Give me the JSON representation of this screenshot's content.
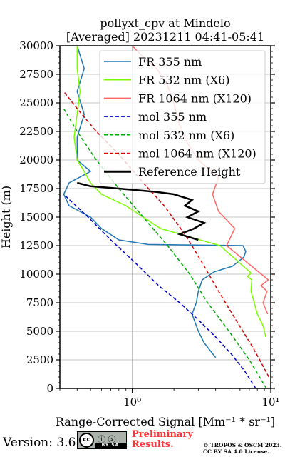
{
  "chart_data": {
    "type": "line",
    "title": "pollyxt_cpv at Mindelo",
    "subtitle": "[Averaged] 20231211 04:41-05:41",
    "xlabel": "Range-Corrected Signal [Mm^{-1} * sr^{-1}]",
    "ylabel": "Height (m)",
    "xscale": "log",
    "xlim": [
      0.3,
      10
    ],
    "ylim": [
      0,
      30000
    ],
    "xticks": [
      1,
      10
    ],
    "xtick_labels": [
      "10⁰",
      "10¹"
    ],
    "yticks": [
      0,
      2500,
      5000,
      7500,
      10000,
      12500,
      15000,
      17500,
      20000,
      22500,
      25000,
      27500,
      30000
    ],
    "ytick_labels": [
      "0",
      "2500",
      "5000",
      "7500",
      "10000",
      "12500",
      "15000",
      "17500",
      "20000",
      "22500",
      "25000",
      "27500",
      "30000"
    ],
    "grid": true,
    "legend_position": "top-right",
    "series": [
      {
        "name": "FR 355 nm",
        "color": "#1f77b4",
        "style": "solid",
        "x": [
          4.0,
          3.3,
          3.0,
          2.7,
          2.9,
          3.0,
          3.2,
          3.9,
          5.3,
          6.4,
          6.6,
          6.3,
          1.3,
          0.8,
          0.6,
          0.5,
          0.35,
          0.32,
          0.35,
          0.5,
          0.4,
          0.4,
          0.45,
          0.4,
          0.45,
          0.4
        ],
        "y": [
          2700,
          4000,
          5000,
          6500,
          7500,
          8500,
          9500,
          10200,
          10700,
          11500,
          12000,
          12500,
          12600,
          13000,
          14000,
          15000,
          16000,
          17000,
          18000,
          19000,
          20000,
          22000,
          24000,
          26000,
          28000,
          30000
        ]
      },
      {
        "name": "FR 532 nm (X6)",
        "color": "#7cfc00",
        "style": "solid",
        "x": [
          9.2,
          8.8,
          8.0,
          7.6,
          7.2,
          7.3,
          6.8,
          7.0,
          7.2,
          4.3,
          1.6,
          1.2,
          0.9,
          0.6,
          0.5,
          0.45,
          0.4,
          0.38,
          0.4,
          0.42,
          0.4,
          0.4
        ],
        "y": [
          4500,
          5500,
          6500,
          7500,
          8500,
          9500,
          9800,
          9950,
          10100,
          12500,
          14000,
          15000,
          16000,
          17000,
          18000,
          19000,
          20000,
          22000,
          24000,
          26000,
          28000,
          30000
        ]
      },
      {
        "name": "FR 1064 nm (X120)",
        "color": "#ff6666",
        "style": "solid",
        "x": [
          9.5,
          8.8,
          9.4,
          8.5,
          9.6,
          4.8,
          5.5,
          4.2,
          3.8,
          4.2,
          3.0,
          2.5,
          2.2,
          2.0,
          1.8,
          1.5,
          1.2,
          1.0
        ],
        "y": [
          6500,
          7500,
          8500,
          9000,
          9500,
          12500,
          14000,
          15500,
          17000,
          18500,
          20000,
          21500,
          23000,
          25000,
          26500,
          28000,
          29000,
          30000
        ]
      },
      {
        "name": "mol 355 nm",
        "color": "#0000cc",
        "style": "dashed",
        "x": [
          7.8,
          6.5,
          5.2,
          4.0,
          3.0,
          2.2,
          1.55,
          1.05,
          0.7,
          0.48,
          0.32
        ],
        "y": [
          0,
          1500,
          3000,
          4500,
          6000,
          7500,
          9000,
          11000,
          13000,
          15000,
          17000
        ]
      },
      {
        "name": "mol 532 nm (X6)",
        "color": "#00aa00",
        "style": "dashed",
        "x": [
          9.3,
          7.0,
          5.0,
          3.5,
          2.6,
          1.8,
          1.2,
          0.8,
          0.55,
          0.4,
          0.32
        ],
        "y": [
          0,
          2500,
          5000,
          7500,
          10000,
          12500,
          15000,
          17500,
          20000,
          22500,
          24500
        ]
      },
      {
        "name": "mol 1064 nm (X120)",
        "color": "#dd0000",
        "style": "dashed",
        "x": [
          9.7,
          7.5,
          5.6,
          4.2,
          3.2,
          2.4,
          1.7,
          1.2,
          0.8,
          0.55,
          0.4,
          0.32
        ],
        "y": [
          1000,
          3500,
          6000,
          8500,
          11000,
          13500,
          16000,
          18000,
          20500,
          22500,
          24500,
          26000
        ]
      },
      {
        "name": "Reference Height",
        "color": "#000000",
        "style": "solid",
        "x": [
          3.0,
          2.2,
          2.8,
          3.3,
          2.5,
          3.0,
          2.4,
          2.7,
          2.0,
          1.5,
          0.8,
          0.5,
          0.4
        ],
        "y": [
          13000,
          13500,
          14000,
          14500,
          15000,
          15500,
          16000,
          16500,
          17000,
          17200,
          17500,
          17700,
          18000
        ]
      }
    ]
  },
  "footer": {
    "version": "Version: 3.6",
    "badge": "BY SA",
    "preliminary_line1": "Preliminary",
    "preliminary_line2": "Results.",
    "copyright_line1": "© TROPOS & OSCM 2023.",
    "copyright_line2": "CC BY SA 4.0 License."
  }
}
